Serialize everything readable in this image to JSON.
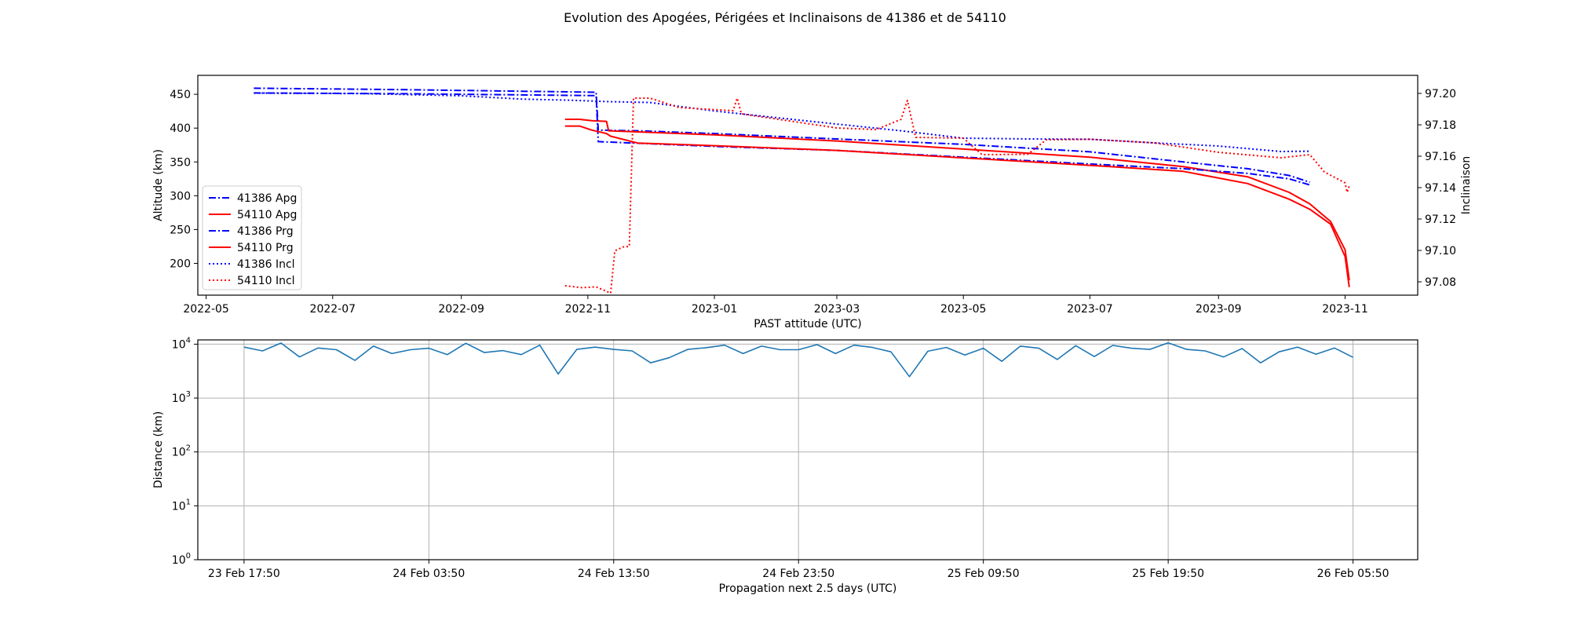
{
  "title": "Evolution des Apogées, Périgées et Inclinaisons de 41386 et de 54110",
  "colors": {
    "blue": "#0000ff",
    "red": "#ff0000",
    "line": "#1f77b4",
    "grid": "#b0b0b0"
  },
  "chart_data": [
    {
      "type": "line",
      "xlabel": "PAST attitude (UTC)",
      "ylabel": "Altitude (km)",
      "y2label": "Inclinaison",
      "xlim": [
        "2022-04-27",
        "2023-12-06"
      ],
      "ylim": [
        153,
        478
      ],
      "y2lim": [
        97.0715,
        97.2115
      ],
      "xticks": [
        "2022-05",
        "2022-07",
        "2022-09",
        "2022-11",
        "2023-01",
        "2023-03",
        "2023-05",
        "2023-07",
        "2023-09",
        "2023-11"
      ],
      "xtick_dates": [
        "2022-05-01",
        "2022-07-01",
        "2022-09-01",
        "2022-11-01",
        "2023-01-01",
        "2023-03-01",
        "2023-05-01",
        "2023-07-01",
        "2023-09-01",
        "2023-11-01"
      ],
      "yticks": [
        200,
        250,
        300,
        350,
        400,
        450
      ],
      "y2ticks": [
        "97.08",
        "97.10",
        "97.12",
        "97.14",
        "97.16",
        "97.18",
        "97.20"
      ],
      "grid": false,
      "legend_position": "lower left",
      "series": [
        {
          "name": "41386 Apg",
          "axis": "left",
          "color": "blue",
          "style": "dashdot",
          "points": [
            [
              "2022-05-24",
              459
            ],
            [
              "2022-08-01",
              457
            ],
            [
              "2022-11-05",
              453
            ],
            [
              "2022-11-06",
              397
            ],
            [
              "2022-11-25",
              396
            ],
            [
              "2023-01-01",
              392
            ],
            [
              "2023-03-01",
              384
            ],
            [
              "2023-05-01",
              376
            ],
            [
              "2023-07-01",
              365
            ],
            [
              "2023-08-15",
              350
            ],
            [
              "2023-09-15",
              340
            ],
            [
              "2023-10-05",
              330
            ],
            [
              "2023-10-15",
              320
            ]
          ]
        },
        {
          "name": "54110 Apg",
          "axis": "left",
          "color": "red",
          "style": "solid",
          "points": [
            [
              "2022-10-21",
              413
            ],
            [
              "2022-10-28",
              413
            ],
            [
              "2022-11-03",
              411
            ],
            [
              "2022-11-10",
              410
            ],
            [
              "2022-11-11",
              396
            ],
            [
              "2022-11-20",
              395
            ],
            [
              "2023-01-01",
              390
            ],
            [
              "2023-03-01",
              381
            ],
            [
              "2023-05-01",
              369
            ],
            [
              "2023-07-01",
              357
            ],
            [
              "2023-08-15",
              343
            ],
            [
              "2023-09-15",
              328
            ],
            [
              "2023-10-05",
              305
            ],
            [
              "2023-10-15",
              288
            ],
            [
              "2023-10-25",
              262
            ],
            [
              "2023-11-01",
              220
            ],
            [
              "2023-11-03",
              175
            ]
          ]
        },
        {
          "name": "41386 Prg",
          "axis": "left",
          "color": "blue",
          "style": "dashdot",
          "points": [
            [
              "2022-05-24",
              452
            ],
            [
              "2022-08-01",
              451
            ],
            [
              "2022-11-05",
              448
            ],
            [
              "2022-11-06",
              380
            ],
            [
              "2023-01-01",
              373
            ],
            [
              "2023-03-01",
              367
            ],
            [
              "2023-05-01",
              357
            ],
            [
              "2023-07-01",
              347
            ],
            [
              "2023-08-15",
              340
            ],
            [
              "2023-09-15",
              333
            ],
            [
              "2023-10-05",
              325
            ],
            [
              "2023-10-15",
              316
            ]
          ]
        },
        {
          "name": "54110 Prg",
          "axis": "left",
          "color": "red",
          "style": "solid",
          "points": [
            [
              "2022-10-21",
              403
            ],
            [
              "2022-10-28",
              403
            ],
            [
              "2022-11-03",
              397
            ],
            [
              "2022-11-10",
              392
            ],
            [
              "2022-11-12",
              388
            ],
            [
              "2022-11-25",
              378
            ],
            [
              "2023-01-01",
              374
            ],
            [
              "2023-03-01",
              367
            ],
            [
              "2023-05-01",
              356
            ],
            [
              "2023-07-01",
              345
            ],
            [
              "2023-08-15",
              336
            ],
            [
              "2023-09-15",
              318
            ],
            [
              "2023-10-05",
              295
            ],
            [
              "2023-10-15",
              280
            ],
            [
              "2023-10-25",
              258
            ],
            [
              "2023-11-01",
              210
            ],
            [
              "2023-11-03",
              165
            ]
          ]
        },
        {
          "name": "41386 Incl",
          "axis": "right",
          "color": "blue",
          "style": "dotted",
          "points": [
            [
              "2022-05-24",
              97.2002
            ],
            [
              "2022-07-15",
              97.1999
            ],
            [
              "2022-09-01",
              97.1985
            ],
            [
              "2022-09-30",
              97.1964
            ],
            [
              "2022-10-25",
              97.1956
            ],
            [
              "2022-11-10",
              97.1948
            ],
            [
              "2022-12-01",
              97.1942
            ],
            [
              "2023-01-01",
              97.1888
            ],
            [
              "2023-02-15",
              97.1824
            ],
            [
              "2023-04-01",
              97.1762
            ],
            [
              "2023-05-01",
              97.1715
            ],
            [
              "2023-06-01",
              97.171
            ],
            [
              "2023-07-01",
              97.1708
            ],
            [
              "2023-08-01",
              97.1685
            ],
            [
              "2023-09-01",
              97.1665
            ],
            [
              "2023-10-01",
              97.163
            ],
            [
              "2023-10-15",
              97.1632
            ]
          ]
        },
        {
          "name": "54110 Incl",
          "axis": "right",
          "color": "red",
          "style": "dotted",
          "points": [
            [
              "2022-10-21",
              97.0775
            ],
            [
              "2022-10-29",
              97.0763
            ],
            [
              "2022-11-05",
              97.0768
            ],
            [
              "2022-11-12",
              97.0728
            ],
            [
              "2022-11-14",
              97.0997
            ],
            [
              "2022-11-18",
              97.1022
            ],
            [
              "2022-11-21",
              97.1025
            ],
            [
              "2022-11-23",
              97.197
            ],
            [
              "2022-12-01",
              97.197
            ],
            [
              "2022-12-15",
              97.191
            ],
            [
              "2023-01-10",
              97.189
            ],
            [
              "2023-01-12",
              97.197
            ],
            [
              "2023-01-14",
              97.187
            ],
            [
              "2023-03-01",
              97.178
            ],
            [
              "2023-03-20",
              97.177
            ],
            [
              "2023-04-01",
              97.1835
            ],
            [
              "2023-04-04",
              97.1955
            ],
            [
              "2023-04-08",
              97.172
            ],
            [
              "2023-05-01",
              97.1715
            ],
            [
              "2023-05-10",
              97.161
            ],
            [
              "2023-06-01",
              97.1612
            ],
            [
              "2023-06-10",
              97.1705
            ],
            [
              "2023-07-01",
              97.1708
            ],
            [
              "2023-08-01",
              97.1685
            ],
            [
              "2023-09-01",
              97.1625
            ],
            [
              "2023-10-01",
              97.159
            ],
            [
              "2023-10-15",
              97.161
            ],
            [
              "2023-10-22",
              97.15
            ],
            [
              "2023-11-01",
              97.143
            ],
            [
              "2023-11-02",
              97.137
            ],
            [
              "2023-11-03",
              97.141
            ]
          ]
        }
      ]
    },
    {
      "type": "line",
      "xlabel": "Propagation next 2.5 days (UTC)",
      "ylabel": "Distance (km)",
      "yscale": "log",
      "ylim": [
        1,
        12000
      ],
      "yticks": [
        {
          "base": "10",
          "exp": "0"
        },
        {
          "base": "10",
          "exp": "1"
        },
        {
          "base": "10",
          "exp": "2"
        },
        {
          "base": "10",
          "exp": "3"
        },
        {
          "base": "10",
          "exp": "4"
        }
      ],
      "xlim_hours": [
        -2.5,
        63.5
      ],
      "xtick_hours": [
        0,
        10,
        20,
        30,
        40,
        50,
        60
      ],
      "xticks": [
        "23 Feb 17:50",
        "24 Feb 03:50",
        "24 Feb 13:50",
        "24 Feb 23:50",
        "25 Feb 09:50",
        "25 Feb 19:50",
        "26 Feb 05:50"
      ],
      "grid": true,
      "series": [
        {
          "color": "line",
          "x_hours": [
            0,
            1,
            2,
            3,
            4,
            5,
            6,
            7,
            8,
            9,
            10,
            11,
            12,
            13,
            14,
            15,
            16,
            17,
            18,
            19,
            20,
            21,
            22,
            23,
            24,
            25,
            26,
            27,
            28,
            29,
            30,
            31,
            32,
            33,
            34,
            35,
            36,
            37,
            38,
            39,
            40,
            41,
            42,
            43,
            44,
            45,
            46,
            47,
            48,
            49,
            50,
            51,
            52,
            53,
            54,
            55,
            56,
            57,
            58,
            59,
            60
          ],
          "values": [
            8800,
            7500,
            10500,
            5800,
            8500,
            7900,
            5000,
            9200,
            6700,
            7900,
            8400,
            6400,
            10400,
            7000,
            7600,
            6400,
            9600,
            2800,
            8000,
            8800,
            8000,
            7500,
            4500,
            5600,
            8000,
            8600,
            9600,
            6700,
            9200,
            7900,
            7900,
            9800,
            6700,
            9600,
            8700,
            7200,
            2500,
            7400,
            8700,
            6300,
            8400,
            4800,
            9200,
            8400,
            5200,
            9400,
            5900,
            9500,
            8400,
            8000,
            10600,
            8000,
            7500,
            5800,
            8300,
            4500,
            7200,
            8800,
            6500,
            8500,
            5700
          ]
        }
      ]
    }
  ]
}
